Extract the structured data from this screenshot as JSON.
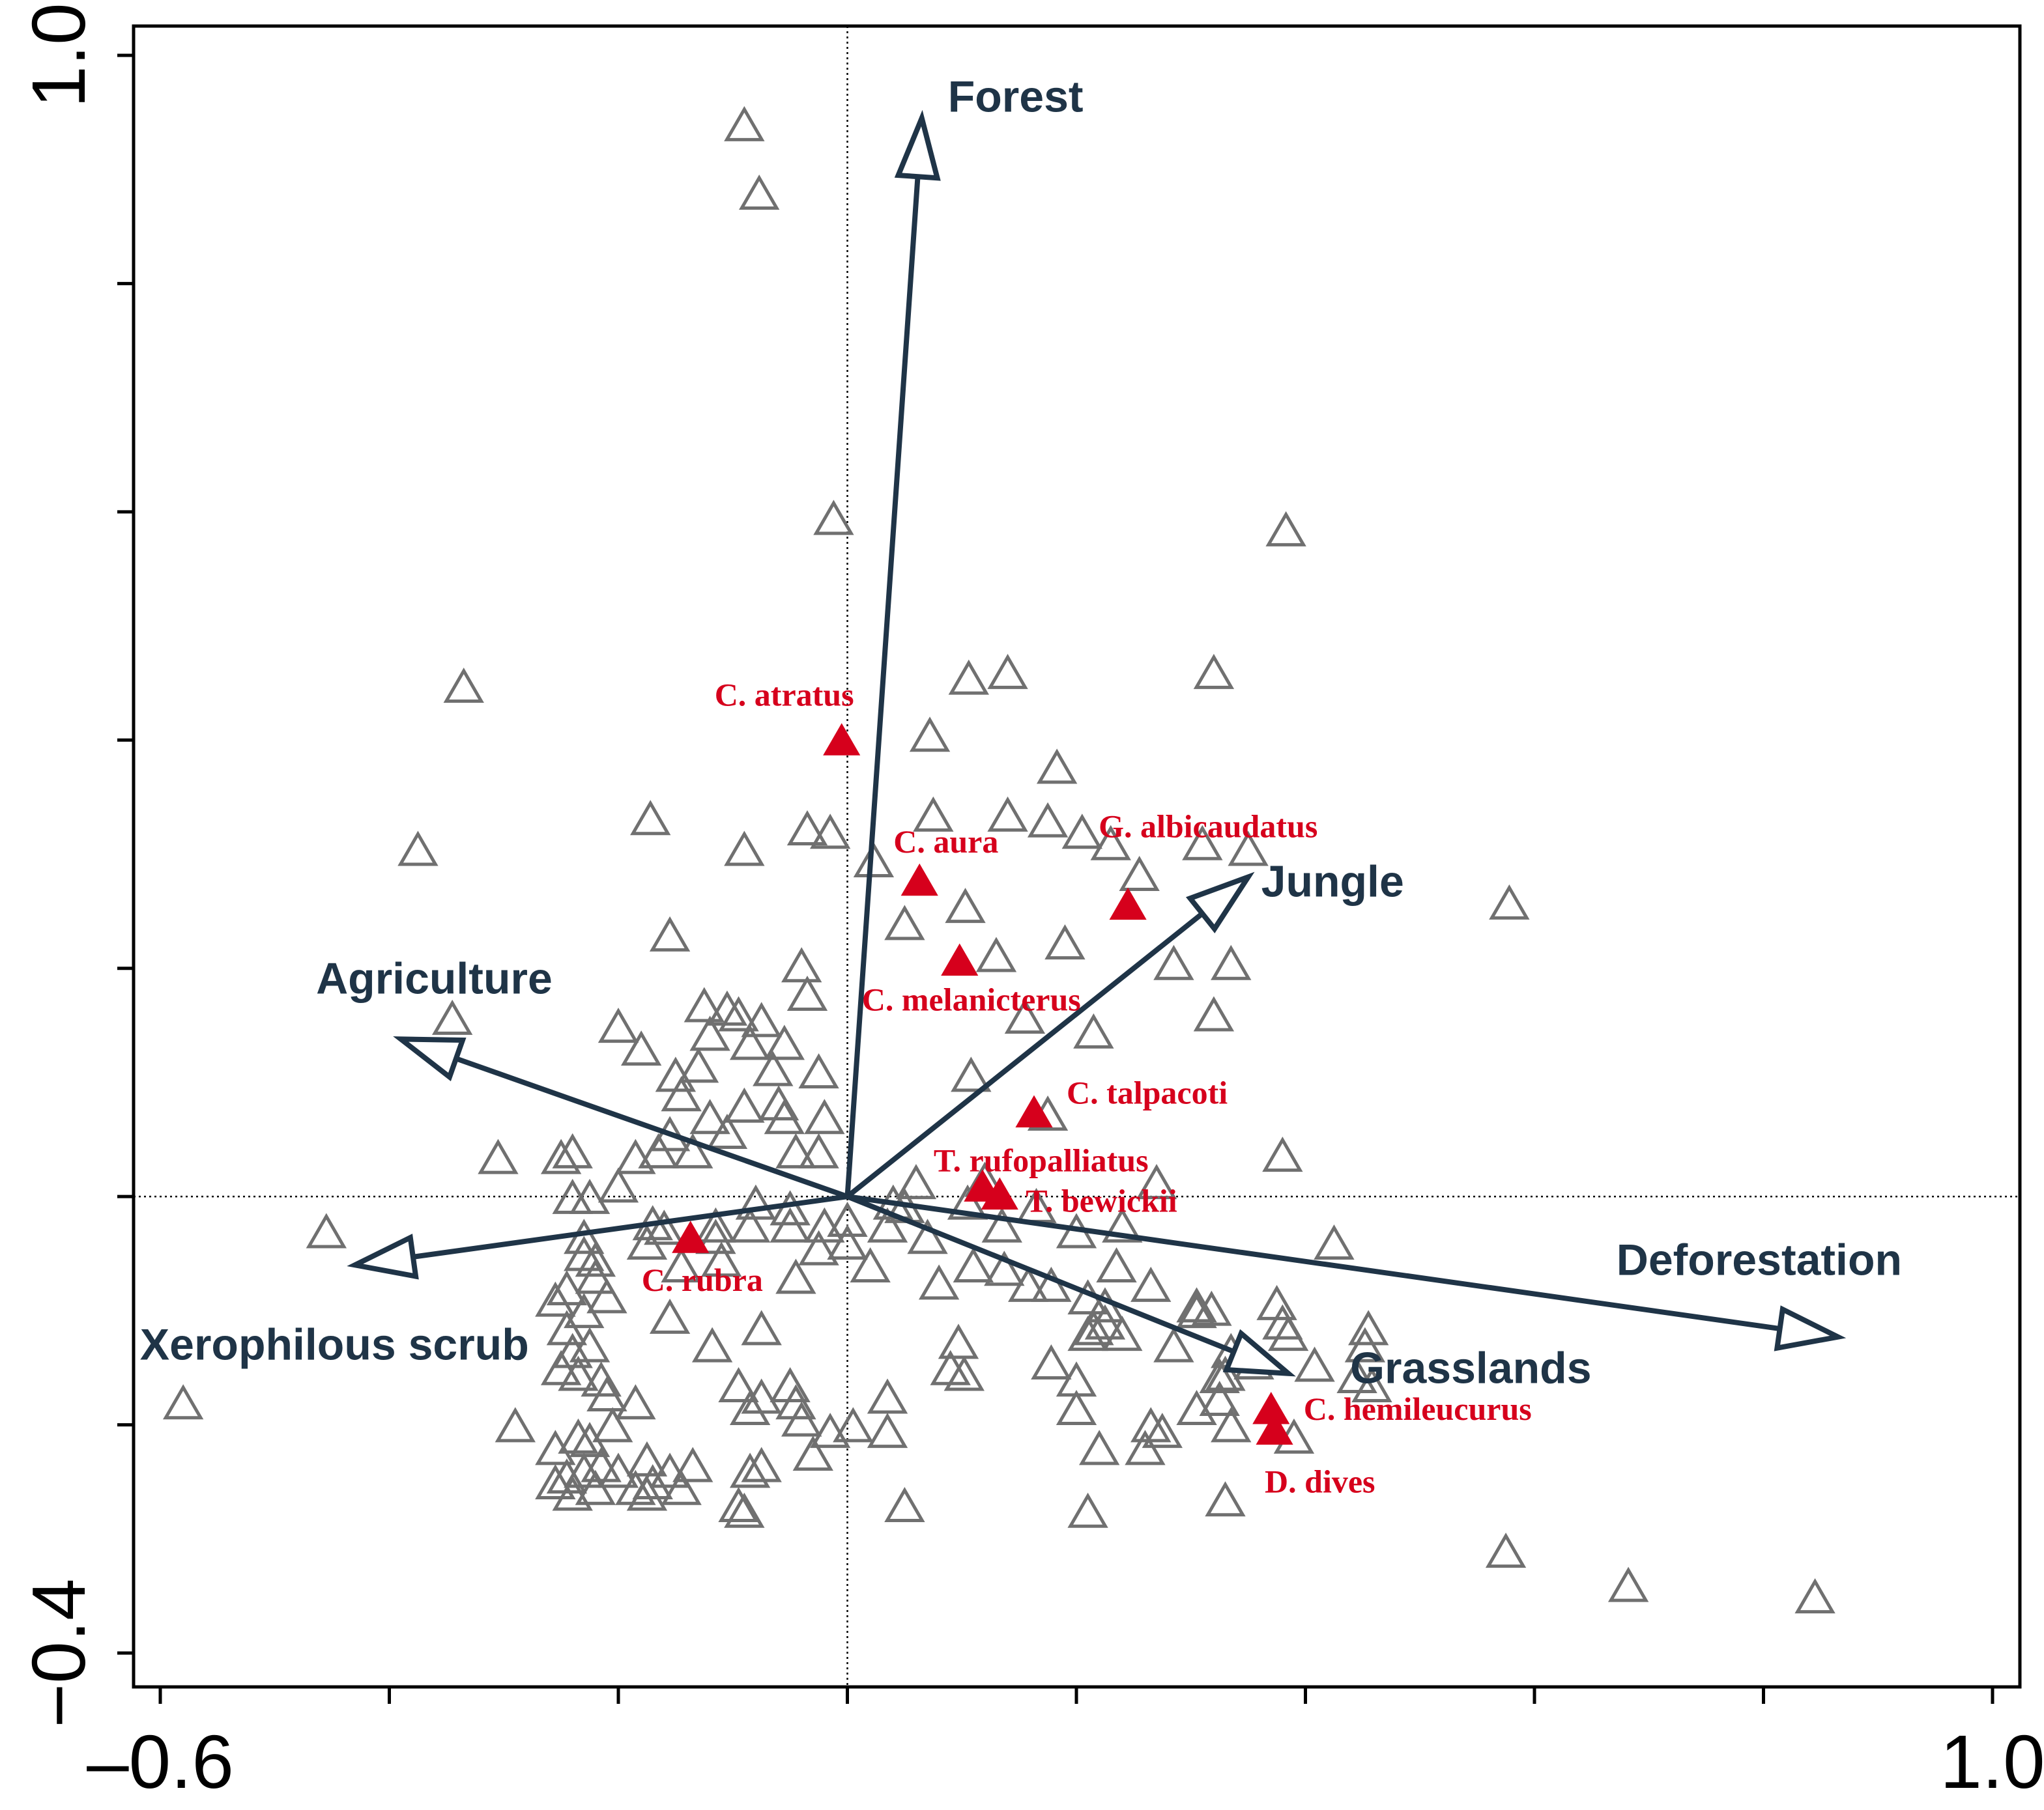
{
  "chart_data": {
    "type": "scatter",
    "title": "",
    "xlabel": "",
    "ylabel": "",
    "xlim": [
      -0.6,
      1.0
    ],
    "ylim": [
      -0.4,
      1.0
    ],
    "x_tick_labels": [
      "–0.6",
      "1.0"
    ],
    "y_tick_labels": [
      "1.0",
      "−0.4"
    ],
    "x_ticks": [
      -0.6,
      -0.4,
      -0.2,
      0.0,
      0.2,
      0.4,
      0.6,
      0.8,
      1.0
    ],
    "y_ticks": [
      -0.4,
      -0.2,
      0.0,
      0.2,
      0.4,
      0.6,
      0.8,
      1.0
    ],
    "reference_lines": {
      "x": 0.0,
      "y": 0.0,
      "style": "dotted"
    },
    "colors": {
      "arrow": "#1f3447",
      "species_highlight": "#d6001c",
      "points": "#707070",
      "axes": "#000000"
    },
    "environmental_vectors": [
      {
        "name": "Forest",
        "x": 0.065,
        "y": 0.945
      },
      {
        "name": "Jungle",
        "x": 0.35,
        "y": 0.28
      },
      {
        "name": "Agriculture",
        "x": -0.39,
        "y": 0.138
      },
      {
        "name": "Xerophilous scrub",
        "x": -0.43,
        "y": -0.06
      },
      {
        "name": "Deforestation",
        "x": 0.865,
        "y": -0.123
      },
      {
        "name": "Grasslands",
        "x": 0.385,
        "y": -0.155
      }
    ],
    "highlighted_species": [
      {
        "name": "C. atratus",
        "x": -0.005,
        "y": 0.396
      },
      {
        "name": "C. aura",
        "x": 0.063,
        "y": 0.273
      },
      {
        "name": "G. albicaudatus",
        "x": 0.245,
        "y": 0.252
      },
      {
        "name": "C. melanicterus",
        "x": 0.098,
        "y": 0.203
      },
      {
        "name": "C. talpacoti",
        "x": 0.163,
        "y": 0.07
      },
      {
        "name": "T. rufopalliatus",
        "x": 0.118,
        "y": 0.005
      },
      {
        "name": "T. bewickii",
        "x": 0.133,
        "y": -0.002
      },
      {
        "name": "C. rubra",
        "x": -0.137,
        "y": -0.04
      },
      {
        "name": "C. hemileucurus",
        "x": 0.37,
        "y": -0.19
      },
      {
        "name": "D. dives",
        "x": 0.373,
        "y": -0.208
      }
    ],
    "sites": [
      [
        -0.09,
        0.935
      ],
      [
        -0.077,
        0.875
      ],
      [
        -0.012,
        0.59
      ],
      [
        0.383,
        0.58
      ],
      [
        -0.335,
        0.443
      ],
      [
        0.106,
        0.45
      ],
      [
        0.14,
        0.455
      ],
      [
        0.32,
        0.455
      ],
      [
        0.072,
        0.4
      ],
      [
        0.183,
        0.372
      ],
      [
        -0.172,
        0.327
      ],
      [
        -0.375,
        0.3
      ],
      [
        -0.09,
        0.3
      ],
      [
        -0.035,
        0.318
      ],
      [
        -0.015,
        0.315
      ],
      [
        0.075,
        0.33
      ],
      [
        0.14,
        0.33
      ],
      [
        0.175,
        0.325
      ],
      [
        0.205,
        0.315
      ],
      [
        0.23,
        0.305
      ],
      [
        0.31,
        0.305
      ],
      [
        0.35,
        0.3
      ],
      [
        0.023,
        0.29
      ],
      [
        0.255,
        0.278
      ],
      [
        0.103,
        0.25
      ],
      [
        0.05,
        0.235
      ],
      [
        -0.155,
        0.225
      ],
      [
        0.19,
        0.218
      ],
      [
        0.13,
        0.207
      ],
      [
        0.285,
        0.2
      ],
      [
        0.335,
        0.2
      ],
      [
        -0.04,
        0.198
      ],
      [
        0.578,
        0.253
      ],
      [
        -0.035,
        0.173
      ],
      [
        -0.125,
        0.163
      ],
      [
        -0.105,
        0.16
      ],
      [
        -0.095,
        0.155
      ],
      [
        -0.075,
        0.15
      ],
      [
        -0.345,
        0.152
      ],
      [
        0.155,
        0.153
      ],
      [
        0.32,
        0.155
      ],
      [
        0.215,
        0.14
      ],
      [
        -0.2,
        0.145
      ],
      [
        -0.18,
        0.125
      ],
      [
        -0.12,
        0.138
      ],
      [
        -0.085,
        0.13
      ],
      [
        -0.055,
        0.13
      ],
      [
        -0.13,
        0.11
      ],
      [
        -0.065,
        0.107
      ],
      [
        -0.025,
        0.105
      ],
      [
        -0.15,
        0.102
      ],
      [
        0.108,
        0.102
      ],
      [
        -0.145,
        0.085
      ],
      [
        -0.09,
        0.075
      ],
      [
        -0.06,
        0.077
      ],
      [
        -0.055,
        0.065
      ],
      [
        -0.02,
        0.065
      ],
      [
        0.175,
        0.068
      ],
      [
        -0.12,
        0.065
      ],
      [
        -0.105,
        0.052
      ],
      [
        -0.155,
        0.05
      ],
      [
        -0.165,
        0.035
      ],
      [
        -0.24,
        0.035
      ],
      [
        -0.25,
        0.03
      ],
      [
        -0.305,
        0.03
      ],
      [
        -0.185,
        0.03
      ],
      [
        -0.2,
        0.005
      ],
      [
        -0.135,
        0.035
      ],
      [
        -0.045,
        0.035
      ],
      [
        -0.025,
        0.035
      ],
      [
        0.38,
        0.032
      ],
      [
        0.06,
        0.008
      ],
      [
        0.12,
        0.01
      ],
      [
        0.27,
        0.008
      ],
      [
        -0.24,
        -0.005
      ],
      [
        -0.225,
        -0.005
      ],
      [
        -0.08,
        -0.01
      ],
      [
        -0.05,
        -0.015
      ],
      [
        0.04,
        -0.01
      ],
      [
        0.05,
        -0.013
      ],
      [
        0.105,
        -0.01
      ],
      [
        0.165,
        -0.013
      ],
      [
        -0.455,
        -0.035
      ],
      [
        -0.23,
        -0.04
      ],
      [
        -0.17,
        -0.028
      ],
      [
        -0.16,
        -0.032
      ],
      [
        -0.115,
        -0.03
      ],
      [
        -0.085,
        -0.03
      ],
      [
        -0.05,
        -0.03
      ],
      [
        -0.02,
        -0.03
      ],
      [
        0.0,
        -0.025
      ],
      [
        0.035,
        -0.03
      ],
      [
        0.07,
        -0.04
      ],
      [
        0.135,
        -0.03
      ],
      [
        0.2,
        -0.035
      ],
      [
        0.24,
        -0.03
      ],
      [
        -0.23,
        -0.055
      ],
      [
        -0.22,
        -0.06
      ],
      [
        -0.175,
        -0.045
      ],
      [
        -0.115,
        -0.04
      ],
      [
        -0.025,
        -0.05
      ],
      [
        0.0,
        -0.045
      ],
      [
        0.425,
        -0.045
      ],
      [
        -0.22,
        -0.075
      ],
      [
        -0.245,
        -0.085
      ],
      [
        -0.145,
        -0.065
      ],
      [
        -0.11,
        -0.06
      ],
      [
        0.02,
        -0.065
      ],
      [
        0.11,
        -0.065
      ],
      [
        0.137,
        -0.068
      ],
      [
        0.235,
        -0.065
      ],
      [
        -0.045,
        -0.075
      ],
      [
        0.08,
        -0.08
      ],
      [
        0.158,
        -0.082
      ],
      [
        0.178,
        -0.082
      ],
      [
        0.265,
        -0.082
      ],
      [
        -0.255,
        -0.095
      ],
      [
        -0.21,
        -0.092
      ],
      [
        -0.23,
        -0.105
      ],
      [
        0.21,
        -0.093
      ],
      [
        0.225,
        -0.1
      ],
      [
        0.305,
        -0.1
      ],
      [
        0.375,
        -0.098
      ],
      [
        -0.155,
        -0.11
      ],
      [
        0.305,
        -0.105
      ],
      [
        0.318,
        -0.103
      ],
      [
        -0.245,
        -0.12
      ],
      [
        -0.075,
        -0.12
      ],
      [
        0.225,
        -0.115
      ],
      [
        0.215,
        -0.12
      ],
      [
        0.38,
        -0.115
      ],
      [
        0.455,
        -0.12
      ],
      [
        -0.118,
        -0.135
      ],
      [
        0.21,
        -0.125
      ],
      [
        0.24,
        -0.125
      ],
      [
        0.385,
        -0.125
      ],
      [
        -0.24,
        -0.14
      ],
      [
        -0.225,
        -0.135
      ],
      [
        0.285,
        -0.135
      ],
      [
        0.452,
        -0.135
      ],
      [
        0.097,
        -0.132
      ],
      [
        0.335,
        -0.14
      ],
      [
        -0.25,
        -0.155
      ],
      [
        0.355,
        -0.15
      ],
      [
        0.178,
        -0.15
      ],
      [
        0.09,
        -0.155
      ],
      [
        -0.235,
        -0.16
      ],
      [
        -0.215,
        -0.165
      ],
      [
        0.33,
        -0.16
      ],
      [
        0.408,
        -0.152
      ],
      [
        0.445,
        -0.162
      ],
      [
        -0.05,
        -0.17
      ],
      [
        0.102,
        -0.16
      ],
      [
        0.2,
        -0.165
      ],
      [
        0.325,
        -0.162
      ],
      [
        -0.095,
        -0.17
      ],
      [
        -0.21,
        -0.178
      ],
      [
        0.458,
        -0.17
      ],
      [
        -0.185,
        -0.185
      ],
      [
        -0.075,
        -0.18
      ],
      [
        -0.045,
        -0.185
      ],
      [
        -0.085,
        -0.19
      ],
      [
        0.035,
        -0.18
      ],
      [
        0.2,
        -0.19
      ],
      [
        0.305,
        -0.19
      ],
      [
        0.325,
        -0.182
      ],
      [
        -0.29,
        -0.205
      ],
      [
        -0.255,
        -0.225
      ],
      [
        -0.235,
        -0.215
      ],
      [
        -0.225,
        -0.218
      ],
      [
        -0.205,
        -0.205
      ],
      [
        -0.23,
        -0.245
      ],
      [
        -0.215,
        -0.24
      ],
      [
        -0.245,
        -0.25
      ],
      [
        -0.2,
        -0.245
      ],
      [
        -0.04,
        -0.2
      ],
      [
        -0.015,
        -0.21
      ],
      [
        0.005,
        -0.205
      ],
      [
        0.035,
        -0.21
      ],
      [
        0.265,
        -0.205
      ],
      [
        0.275,
        -0.21
      ],
      [
        0.335,
        -0.205
      ],
      [
        -0.175,
        -0.235
      ],
      [
        -0.17,
        -0.255
      ],
      [
        -0.135,
        -0.24
      ],
      [
        -0.155,
        -0.245
      ],
      [
        -0.175,
        -0.265
      ],
      [
        -0.145,
        -0.26
      ],
      [
        -0.085,
        -0.245
      ],
      [
        -0.075,
        -0.24
      ],
      [
        -0.03,
        -0.23
      ],
      [
        0.22,
        -0.225
      ],
      [
        0.26,
        -0.225
      ],
      [
        0.39,
        -0.215
      ],
      [
        -0.255,
        -0.255
      ],
      [
        -0.24,
        -0.265
      ],
      [
        -0.22,
        -0.26
      ],
      [
        -0.185,
        -0.26
      ],
      [
        -0.095,
        -0.275
      ],
      [
        -0.09,
        -0.28
      ],
      [
        0.05,
        -0.275
      ],
      [
        0.21,
        -0.28
      ],
      [
        0.33,
        -0.27
      ],
      [
        0.575,
        -0.315
      ],
      [
        0.682,
        -0.345
      ],
      [
        0.845,
        -0.355
      ],
      [
        -0.58,
        -0.185
      ]
    ]
  }
}
